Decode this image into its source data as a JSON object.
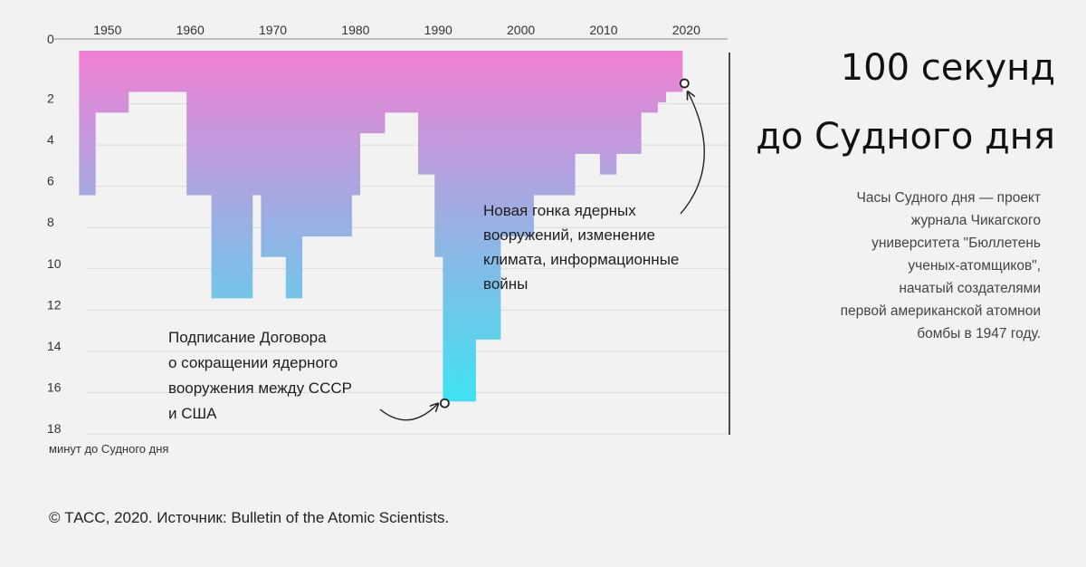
{
  "chart_data": {
    "type": "area",
    "step": "post",
    "x_ticks": [
      1950,
      1960,
      1970,
      1980,
      1990,
      2000,
      2010,
      2020
    ],
    "y_ticks": [
      0,
      2,
      4,
      6,
      8,
      10,
      12,
      14,
      16,
      18
    ],
    "xlim": [
      1944,
      2025
    ],
    "ylim": [
      0,
      18
    ],
    "y_inverted": true,
    "ylabel": "минут до Судного дня",
    "x_end": 2020,
    "points": [
      {
        "year": 1947,
        "minutes": 7
      },
      {
        "year": 1949,
        "minutes": 3
      },
      {
        "year": 1953,
        "minutes": 2
      },
      {
        "year": 1960,
        "minutes": 7
      },
      {
        "year": 1963,
        "minutes": 12
      },
      {
        "year": 1968,
        "minutes": 7
      },
      {
        "year": 1969,
        "minutes": 10
      },
      {
        "year": 1972,
        "minutes": 12
      },
      {
        "year": 1974,
        "minutes": 9
      },
      {
        "year": 1980,
        "minutes": 7
      },
      {
        "year": 1981,
        "minutes": 4
      },
      {
        "year": 1984,
        "minutes": 3
      },
      {
        "year": 1988,
        "minutes": 6
      },
      {
        "year": 1990,
        "minutes": 10
      },
      {
        "year": 1991,
        "minutes": 17
      },
      {
        "year": 1995,
        "minutes": 14
      },
      {
        "year": 1998,
        "minutes": 9
      },
      {
        "year": 2002,
        "minutes": 7
      },
      {
        "year": 2007,
        "minutes": 5
      },
      {
        "year": 2010,
        "minutes": 6
      },
      {
        "year": 2012,
        "minutes": 5
      },
      {
        "year": 2015,
        "minutes": 3
      },
      {
        "year": 2017,
        "minutes": 2.5
      },
      {
        "year": 2018,
        "minutes": 2
      },
      {
        "year": 2020,
        "minutes": 1.67
      }
    ],
    "gradient_colors": [
      "#f07fd4",
      "#3fe2f2"
    ],
    "annotations": [
      {
        "id": "start",
        "year": 1991,
        "minutes": 17,
        "lines": [
          "Подписание Договора",
          "о сокращении ядерного",
          "вооружения между СССР",
          "и США"
        ]
      },
      {
        "id": "end",
        "year": 2020,
        "minutes": 1.67,
        "lines": [
          "Новая гонка ядерных",
          "вооружений, изменение",
          "климата, информационные",
          "войны"
        ]
      }
    ]
  },
  "title": {
    "line1": "100 секунд",
    "line2": "до Судного дня"
  },
  "description": [
    "Часы Судного дня — проект",
    "журнала Чикагского",
    "университета \"Бюллетень",
    "ученых-атомщиков\",",
    "начатый создателями",
    "первой американской атомнои",
    "бомбы в 1947 году."
  ],
  "footer": "© ТАСС, 2020. Источник: Bulletin of the Atomic Scientists."
}
